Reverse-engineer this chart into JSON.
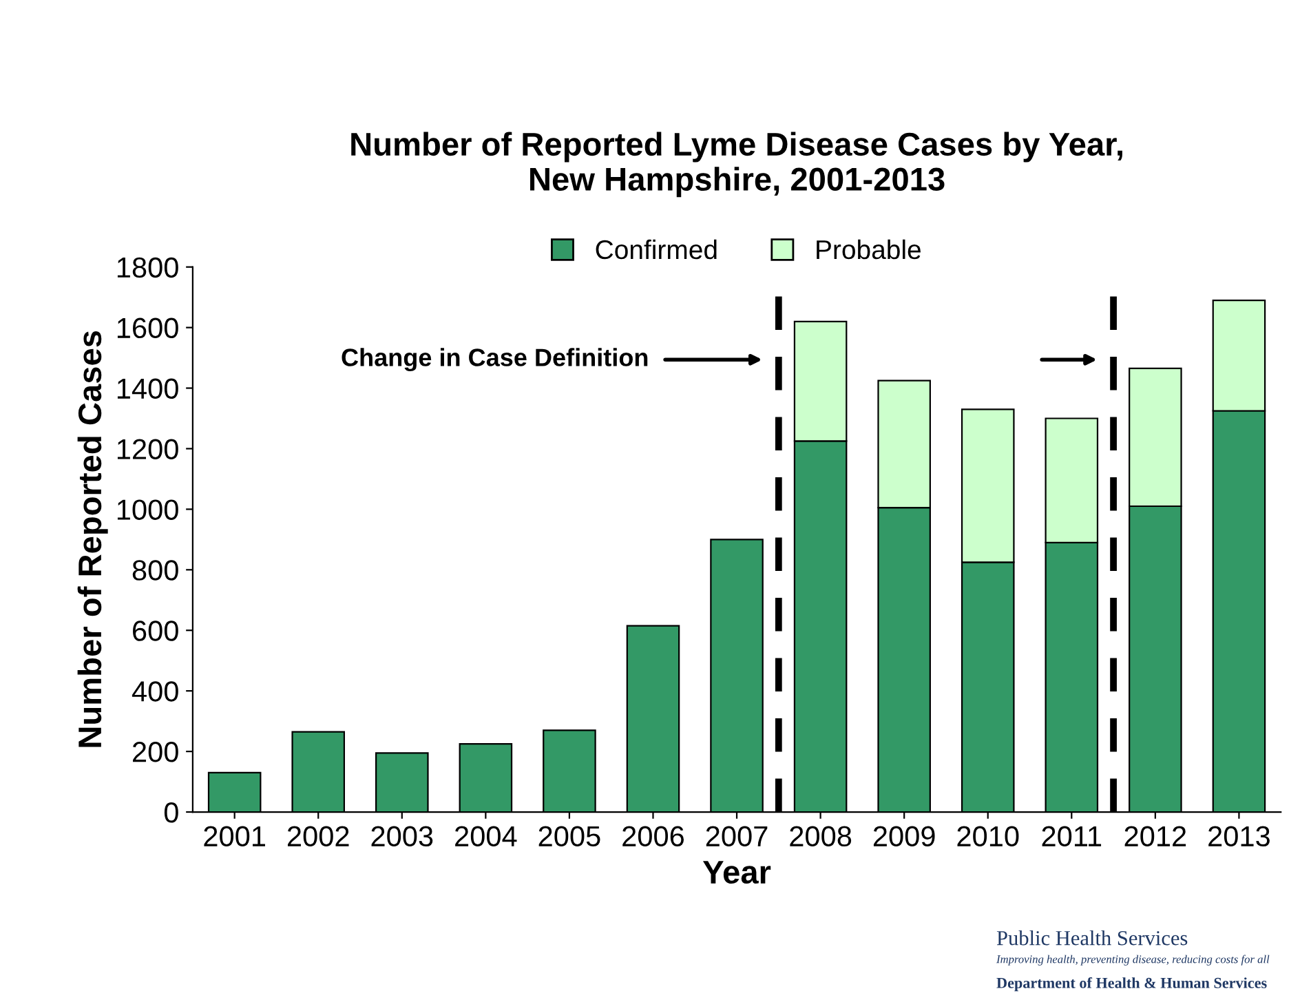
{
  "chart_data": {
    "type": "bar",
    "title": "Number of Reported Lyme Disease Cases by Year,\nNew Hampshire, 2001-2013",
    "xlabel": "Year",
    "ylabel": "Number of Reported Cases",
    "categories": [
      "2001",
      "2002",
      "2003",
      "2004",
      "2005",
      "2006",
      "2007",
      "2008",
      "2009",
      "2010",
      "2011",
      "2012",
      "2013"
    ],
    "series": [
      {
        "name": "Confirmed",
        "color": "#339966",
        "values": [
          130,
          265,
          195,
          225,
          270,
          615,
          900,
          1225,
          1005,
          825,
          890,
          1010,
          1325
        ]
      },
      {
        "name": "Probable",
        "color": "#ccffcc",
        "values": [
          null,
          null,
          null,
          null,
          null,
          null,
          null,
          395,
          420,
          505,
          410,
          455,
          365
        ]
      }
    ],
    "stacked": true,
    "ylim": [
      0,
      1800
    ],
    "yticks": [
      0,
      200,
      400,
      600,
      800,
      1000,
      1200,
      1400,
      1600,
      1800
    ],
    "grid": false,
    "legend": "top",
    "annotations": [
      "Change in Case Definition",
      "Public Health Services",
      "Improving health, preventing disease, reducing costs for all",
      "Department of Health & Human Services"
    ]
  }
}
